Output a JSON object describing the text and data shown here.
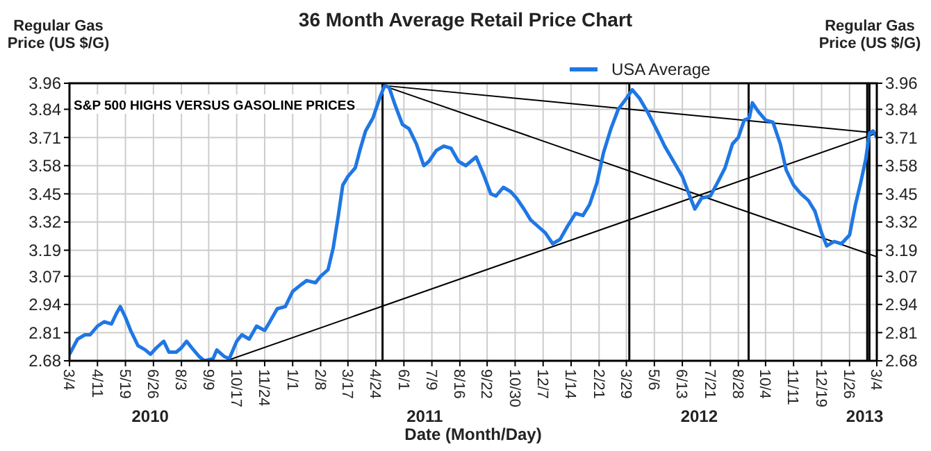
{
  "chart_data": {
    "type": "line",
    "title": "36 Month Average Retail Price Chart",
    "xlabel": "Date (Month/Day)",
    "ylabel": "Regular Gas Price (US $/G)",
    "y2label": "Regular Gas Price (US $/G)",
    "annotations": [
      "S&P 500 HIGHS VERSUS GASOLINE PRICES",
      "2010",
      "2011",
      "2012",
      "2013"
    ],
    "xlim": [
      "2010-03-04",
      "2013-03-04"
    ],
    "xticks": [
      {
        "value": "2010-03-04",
        "label": "3/4"
      },
      {
        "value": "2010-04-11",
        "label": "4/11"
      },
      {
        "value": "2010-05-19",
        "label": "5/19"
      },
      {
        "value": "2010-06-26",
        "label": "6/26"
      },
      {
        "value": "2010-08-03",
        "label": "8/3"
      },
      {
        "value": "2010-09-09",
        "label": "9/9"
      },
      {
        "value": "2010-10-17",
        "label": "10/17"
      },
      {
        "value": "2010-11-24",
        "label": "11/24"
      },
      {
        "value": "2011-01-01",
        "label": "1/1"
      },
      {
        "value": "2011-02-08",
        "label": "2/8"
      },
      {
        "value": "2011-03-17",
        "label": "3/17"
      },
      {
        "value": "2011-04-24",
        "label": "4/24"
      },
      {
        "value": "2011-06-01",
        "label": "6/1"
      },
      {
        "value": "2011-07-09",
        "label": "7/9"
      },
      {
        "value": "2011-08-16",
        "label": "8/16"
      },
      {
        "value": "2011-09-22",
        "label": "9/22"
      },
      {
        "value": "2011-10-30",
        "label": "10/30"
      },
      {
        "value": "2011-12-07",
        "label": "12/7"
      },
      {
        "value": "2012-01-14",
        "label": "1/14"
      },
      {
        "value": "2012-02-21",
        "label": "2/21"
      },
      {
        "value": "2012-03-29",
        "label": "3/29"
      },
      {
        "value": "2012-05-06",
        "label": "5/6"
      },
      {
        "value": "2012-06-13",
        "label": "6/13"
      },
      {
        "value": "2012-07-21",
        "label": "7/21"
      },
      {
        "value": "2012-08-28",
        "label": "8/28"
      },
      {
        "value": "2012-10-04",
        "label": "10/4"
      },
      {
        "value": "2012-11-11",
        "label": "11/11"
      },
      {
        "value": "2012-12-19",
        "label": "12/19"
      },
      {
        "value": "2013-01-26",
        "label": "1/26"
      },
      {
        "value": "2013-03-04",
        "label": "3/4"
      }
    ],
    "ylim": [
      2.68,
      3.96
    ],
    "yticks": [
      2.68,
      2.81,
      2.94,
      3.07,
      3.19,
      3.32,
      3.45,
      3.58,
      3.71,
      3.84,
      3.96
    ],
    "y2lim": [
      2.68,
      3.96
    ],
    "y2ticks": [
      2.68,
      2.81,
      2.94,
      3.07,
      3.19,
      3.32,
      3.45,
      3.58,
      3.71,
      3.84,
      3.96
    ],
    "grid": true,
    "legend": "top",
    "marker": "none",
    "line_style": "solid",
    "ref_lines": [
      {
        "axis": "x",
        "value": "2011-05-03",
        "color": "#000000"
      },
      {
        "axis": "x",
        "value": "2012-04-02",
        "color": "#000000"
      },
      {
        "axis": "x",
        "value": "2012-09-11",
        "color": "#000000"
      },
      {
        "axis": "x",
        "value": "2013-02-19",
        "color": "#000000"
      },
      {
        "axis": "x",
        "value": "2013-02-22",
        "color": "#000000"
      }
    ],
    "series": [
      {
        "name": "USA Average",
        "color": "#1f77e4",
        "x": [
          "2010-03-04",
          "2010-03-15",
          "2010-03-25",
          "2010-04-01",
          "2010-04-11",
          "2010-04-20",
          "2010-04-30",
          "2010-05-07",
          "2010-05-12",
          "2010-05-19",
          "2010-05-26",
          "2010-06-05",
          "2010-06-15",
          "2010-06-22",
          "2010-06-30",
          "2010-07-10",
          "2010-07-17",
          "2010-07-27",
          "2010-08-03",
          "2010-08-10",
          "2010-08-17",
          "2010-08-27",
          "2010-09-03",
          "2010-09-15",
          "2010-09-20",
          "2010-09-30",
          "2010-10-07",
          "2010-10-17",
          "2010-10-24",
          "2010-11-03",
          "2010-11-13",
          "2010-11-24",
          "2010-12-01",
          "2010-12-11",
          "2010-12-22",
          "2011-01-01",
          "2011-01-12",
          "2011-01-20",
          "2011-02-01",
          "2011-02-08",
          "2011-02-18",
          "2011-02-25",
          "2011-03-04",
          "2011-03-10",
          "2011-03-17",
          "2011-03-27",
          "2011-04-03",
          "2011-04-10",
          "2011-04-20",
          "2011-04-30",
          "2011-05-06",
          "2011-05-12",
          "2011-05-20",
          "2011-05-30",
          "2011-06-08",
          "2011-06-18",
          "2011-06-28",
          "2011-07-05",
          "2011-07-15",
          "2011-07-25",
          "2011-08-04",
          "2011-08-14",
          "2011-08-24",
          "2011-09-07",
          "2011-09-17",
          "2011-09-27",
          "2011-10-04",
          "2011-10-14",
          "2011-10-24",
          "2011-11-01",
          "2011-11-11",
          "2011-11-20",
          "2011-11-30",
          "2011-12-10",
          "2011-12-20",
          "2011-12-30",
          "2012-01-09",
          "2012-01-20",
          "2012-01-30",
          "2012-02-08",
          "2012-02-18",
          "2012-02-27",
          "2012-03-08",
          "2012-03-18",
          "2012-03-29",
          "2012-04-06",
          "2012-04-16",
          "2012-04-28",
          "2012-05-10",
          "2012-05-20",
          "2012-06-01",
          "2012-06-13",
          "2012-06-23",
          "2012-06-30",
          "2012-07-09",
          "2012-07-21",
          "2012-08-01",
          "2012-08-10",
          "2012-08-20",
          "2012-08-28",
          "2012-09-05",
          "2012-09-12",
          "2012-09-16",
          "2012-09-24",
          "2012-10-04",
          "2012-10-14",
          "2012-10-24",
          "2012-11-01",
          "2012-11-11",
          "2012-11-21",
          "2012-12-01",
          "2012-12-10",
          "2012-12-19",
          "2012-12-26",
          "2013-01-05",
          "2013-01-15",
          "2013-01-26",
          "2013-02-03",
          "2013-02-10",
          "2013-02-17",
          "2013-02-22",
          "2013-02-27",
          "2013-03-04"
        ],
        "values": [
          2.71,
          2.78,
          2.8,
          2.8,
          2.84,
          2.86,
          2.85,
          2.9,
          2.93,
          2.88,
          2.82,
          2.75,
          2.73,
          2.71,
          2.74,
          2.77,
          2.72,
          2.72,
          2.74,
          2.77,
          2.74,
          2.7,
          2.68,
          2.69,
          2.73,
          2.7,
          2.69,
          2.77,
          2.8,
          2.78,
          2.84,
          2.82,
          2.86,
          2.92,
          2.93,
          3.0,
          3.03,
          3.05,
          3.04,
          3.07,
          3.1,
          3.2,
          3.35,
          3.49,
          3.53,
          3.57,
          3.66,
          3.74,
          3.8,
          3.9,
          3.95,
          3.94,
          3.86,
          3.77,
          3.75,
          3.68,
          3.58,
          3.6,
          3.65,
          3.67,
          3.66,
          3.6,
          3.58,
          3.62,
          3.54,
          3.45,
          3.44,
          3.48,
          3.46,
          3.43,
          3.38,
          3.33,
          3.3,
          3.27,
          3.22,
          3.24,
          3.3,
          3.36,
          3.35,
          3.4,
          3.5,
          3.64,
          3.75,
          3.84,
          3.89,
          3.93,
          3.89,
          3.82,
          3.74,
          3.67,
          3.6,
          3.53,
          3.44,
          3.38,
          3.43,
          3.44,
          3.51,
          3.57,
          3.68,
          3.71,
          3.79,
          3.8,
          3.87,
          3.83,
          3.79,
          3.78,
          3.68,
          3.56,
          3.49,
          3.45,
          3.42,
          3.37,
          3.27,
          3.21,
          3.23,
          3.22,
          3.26,
          3.4,
          3.5,
          3.61,
          3.73,
          3.74,
          3.71
        ]
      },
      {
        "type": "line",
        "color": "#000000",
        "x": [
          "2010-10-03",
          "2013-03-04"
        ],
        "values": [
          2.68,
          3.73
        ]
      },
      {
        "type": "line",
        "color": "#000000",
        "x": [
          "2011-05-03",
          "2013-03-04"
        ],
        "values": [
          3.95,
          3.16
        ]
      },
      {
        "type": "line",
        "color": "#000000",
        "x": [
          "2011-05-03",
          "2013-03-04"
        ],
        "values": [
          3.95,
          3.73
        ]
      }
    ]
  }
}
